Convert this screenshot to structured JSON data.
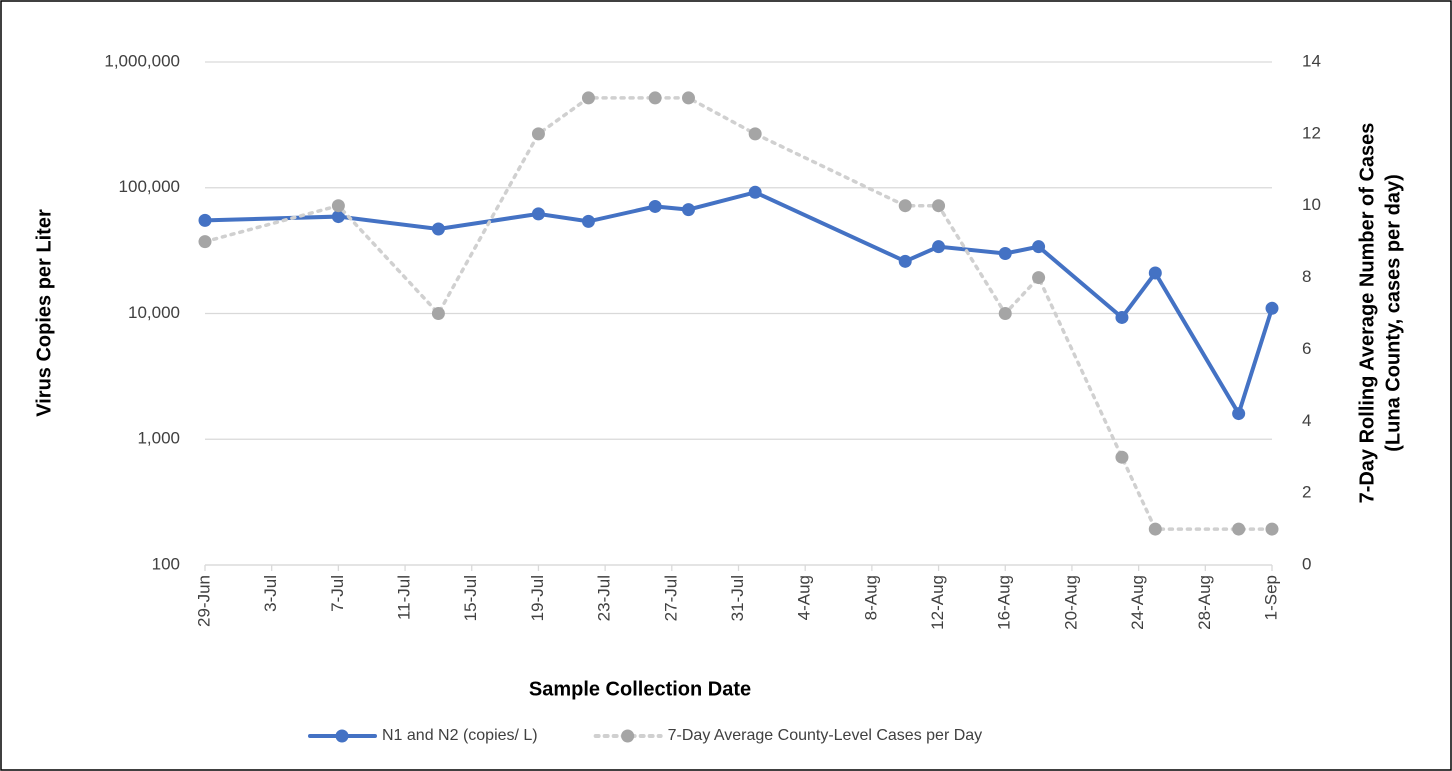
{
  "chart_data": {
    "type": "line",
    "x_label": "Sample Collection Date",
    "y_label": "Virus Copies per Liter",
    "y2_label": [
      "7-Day Rolling Average Number of Cases",
      "(Luna County, cases per day)"
    ],
    "x": [
      "29-Jun",
      "7-Jul",
      "13-Jul",
      "19-Jul",
      "22-Jul",
      "26-Jul",
      "28-Jul",
      "1-Aug",
      "10-Aug",
      "12-Aug",
      "16-Aug",
      "18-Aug",
      "23-Aug",
      "25-Aug",
      "30-Aug",
      "1-Sep"
    ],
    "series": [
      {
        "name": "N1 and N2 (copies/ L)",
        "color": "#4472c4",
        "line_style": "solid",
        "axis": "y",
        "values": [
          55000,
          59000,
          47000,
          62000,
          54000,
          71000,
          67000,
          92000,
          26000,
          34000,
          30000,
          34000,
          9300,
          21000,
          1600,
          11000
        ]
      },
      {
        "name": "7-Day Average County-Level Cases per Day",
        "color": "#a5a5a5",
        "line_style": "dotted",
        "axis": "y2",
        "values": [
          9,
          10,
          7,
          12,
          13,
          13,
          13,
          12,
          10,
          10,
          7,
          8,
          3,
          1,
          1,
          1
        ]
      }
    ],
    "xlim": [
      "29-Jun",
      "1-Sep"
    ],
    "xticks": [
      "29-Jun",
      "3-Jul",
      "7-Jul",
      "11-Jul",
      "15-Jul",
      "19-Jul",
      "23-Jul",
      "27-Jul",
      "31-Jul",
      "4-Aug",
      "8-Aug",
      "12-Aug",
      "16-Aug",
      "20-Aug",
      "24-Aug",
      "28-Aug",
      "1-Sep"
    ],
    "y_scale": "log",
    "ylim": [
      100,
      1000000
    ],
    "yticks": [
      100,
      {
        "value": 1000,
        "label": "1,000"
      },
      {
        "value": 10000,
        "label": "10,000"
      },
      {
        "value": 100000,
        "label": "100,000"
      },
      {
        "value": 1000000,
        "label": "1,000,000"
      }
    ],
    "y2lim": [
      0,
      14
    ],
    "y2ticks": [
      0,
      2,
      4,
      6,
      8,
      10,
      12,
      14
    ],
    "grid": true,
    "legend": "bottom"
  }
}
